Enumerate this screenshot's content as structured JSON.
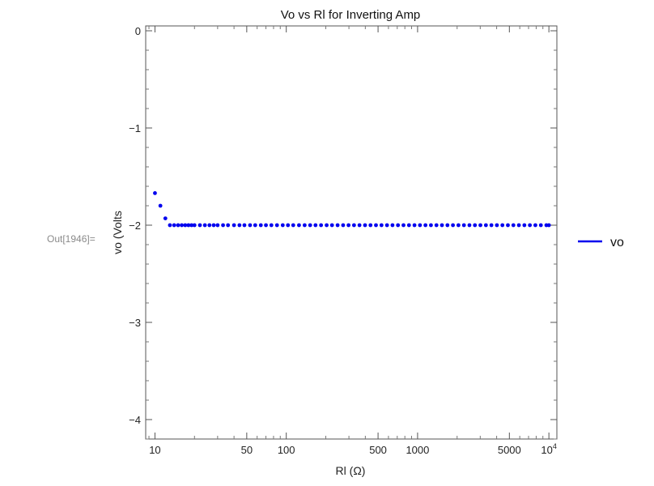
{
  "cell_label": "Out[1946]=",
  "chart_data": {
    "type": "scatter",
    "title": "Vo vs Rl for Inverting Amp",
    "xlabel": "Rl (Ω)",
    "ylabel": "vo (Volts",
    "x_scale": "log",
    "xlim": [
      8.5,
      11500
    ],
    "ylim": [
      -4.2,
      0.05
    ],
    "x_ticks": [
      {
        "value": 10,
        "label": "10"
      },
      {
        "value": 50,
        "label": "50"
      },
      {
        "value": 100,
        "label": "100"
      },
      {
        "value": 500,
        "label": "500"
      },
      {
        "value": 1000,
        "label": "1000"
      },
      {
        "value": 5000,
        "label": "5000"
      },
      {
        "value": 10000,
        "label": "10",
        "exponent": "4"
      }
    ],
    "y_ticks": [
      {
        "value": 0,
        "label": "0"
      },
      {
        "value": -1,
        "label": "−1"
      },
      {
        "value": -2,
        "label": "−2"
      },
      {
        "value": -3,
        "label": "−3"
      },
      {
        "value": -4,
        "label": "−4"
      }
    ],
    "grid": false,
    "legend": {
      "position": "right",
      "label": "vo"
    },
    "series": [
      {
        "name": "vo",
        "color": "#0000ee",
        "x": [
          10,
          11,
          12,
          13,
          14,
          15,
          16,
          17,
          18,
          19,
          20,
          22,
          24,
          26,
          28,
          30,
          33,
          36,
          40,
          44,
          48,
          53,
          58,
          64,
          70,
          77,
          85,
          94,
          103,
          113,
          125,
          138,
          152,
          167,
          184,
          203,
          223,
          246,
          271,
          298,
          328,
          361,
          398,
          438,
          482,
          531,
          585,
          644,
          709,
          781,
          860,
          947,
          1043,
          1148,
          1264,
          1392,
          1533,
          1688,
          1859,
          2047,
          2254,
          2482,
          2733,
          3009,
          3314,
          3649,
          4018,
          4425,
          4872,
          5365,
          5908,
          6505,
          7163,
          7888,
          8686,
          9565,
          10000
        ],
        "y": [
          -1.67,
          -1.8,
          -1.93,
          -2.0,
          -2.0,
          -2.0,
          -2.0,
          -2.0,
          -2.0,
          -2.0,
          -2.0,
          -2.0,
          -2.0,
          -2.0,
          -2.0,
          -2.0,
          -2.0,
          -2.0,
          -2.0,
          -2.0,
          -2.0,
          -2.0,
          -2.0,
          -2.0,
          -2.0,
          -2.0,
          -2.0,
          -2.0,
          -2.0,
          -2.0,
          -2.0,
          -2.0,
          -2.0,
          -2.0,
          -2.0,
          -2.0,
          -2.0,
          -2.0,
          -2.0,
          -2.0,
          -2.0,
          -2.0,
          -2.0,
          -2.0,
          -2.0,
          -2.0,
          -2.0,
          -2.0,
          -2.0,
          -2.0,
          -2.0,
          -2.0,
          -2.0,
          -2.0,
          -2.0,
          -2.0,
          -2.0,
          -2.0,
          -2.0,
          -2.0,
          -2.0,
          -2.0,
          -2.0,
          -2.0,
          -2.0,
          -2.0,
          -2.0,
          -2.0,
          -2.0,
          -2.0,
          -2.0,
          -2.0,
          -2.0,
          -2.0,
          -2.0,
          -2.0,
          -2.0
        ]
      }
    ]
  }
}
